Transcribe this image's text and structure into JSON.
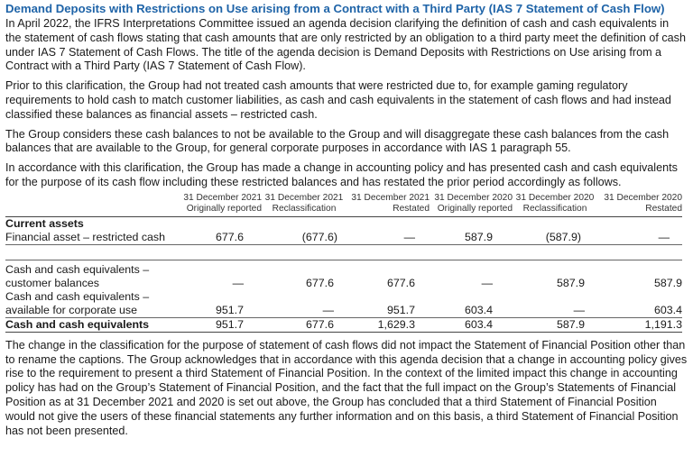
{
  "heading": "Demand Deposits with Restrictions on Use arising from a Contract with a Third Party (IAS 7 Statement of Cash Flow)",
  "paragraphs": [
    "In April 2022, the IFRS Interpretations Committee issued an agenda decision clarifying the definition of cash and cash equivalents in the statement of cash flows stating that cash amounts that are only restricted by an obligation to a third party meet the definition of cash under IAS 7 Statement of Cash Flows. The title of the agenda decision is Demand Deposits with Restrictions on Use arising from a Contract with a Third Party (IAS 7 Statement of Cash Flow).",
    "Prior to this clarification, the Group had not treated cash amounts that were restricted due to, for example gaming regulatory requirements to hold cash to match customer liabilities, as cash and cash equivalents in the statement of cash flows and had instead classified these balances as financial assets – restricted cash.",
    "The Group considers these cash balances to not be available to the Group and will disaggregate these cash balances from the cash balances that are available to the Group, for general corporate purposes in accordance with IAS 1 paragraph 55.",
    "In accordance with this clarification, the Group has made a change in accounting policy and has presented cash and cash equivalents for the purpose of its cash flow including these restricted balances and has restated the prior period accordingly as follows."
  ],
  "table": {
    "columns": [
      {
        "line1": "31 December 2021",
        "line2": "Originally reported"
      },
      {
        "line1": "31 December 2021",
        "line2": "Reclassification"
      },
      {
        "line1": "31 December 2021",
        "line2": "Restated"
      },
      {
        "line1": "31 December 2020",
        "line2": "Originally reported"
      },
      {
        "line1": "31 December 2020",
        "line2": "Reclassification"
      },
      {
        "line1": "31 December 2020",
        "line2": "Restated"
      }
    ],
    "section_current_assets": "Current assets",
    "rows": {
      "restricted": {
        "label": "Financial asset – restricted cash",
        "values": [
          "677.6",
          "(677.6)",
          "—",
          "587.9",
          "(587.9)",
          "—"
        ]
      },
      "customer": {
        "label1": "Cash and cash equivalents –",
        "label2": "customer balances",
        "values": [
          "—",
          "677.6",
          "677.6",
          "—",
          "587.9",
          "587.9"
        ]
      },
      "corporate": {
        "label1": "Cash and cash equivalents –",
        "label2": "available for corporate use",
        "values": [
          "951.7",
          "—",
          "951.7",
          "603.4",
          "—",
          "603.4"
        ]
      },
      "total": {
        "label": "Cash and cash equivalents",
        "values": [
          "951.7",
          "677.6",
          "1,629.3",
          "603.4",
          "587.9",
          "1,191.3"
        ]
      }
    }
  },
  "closing_paragraph": "The change in the classification for the purpose of statement of cash flows did not impact the Statement of Financial Position other than to rename the captions. The Group acknowledges that in accordance with this agenda decision that a change in accounting policy gives rise to the requirement to present a third Statement of Financial Position. In the context of the limited impact this change in accounting policy has had on the Group’s Statement of Financial Position, and the fact that the full impact on the Group’s Statements of Financial Position as at 31 December 2021 and 2020 is set out above, the Group has concluded that a third Statement of Financial Position would not give the users of these financial statements any further information and on this basis, a third Statement of Financial Position has not been presented."
}
